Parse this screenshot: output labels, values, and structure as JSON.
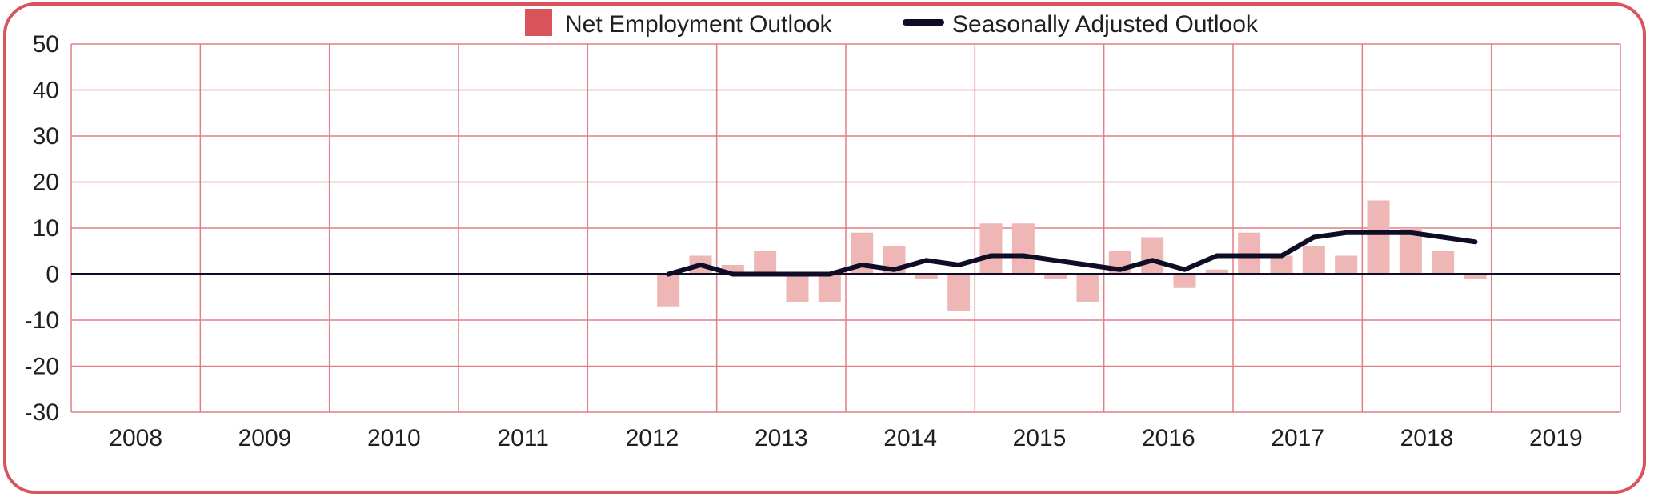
{
  "colors": {
    "frame": "#d9535c",
    "grid": "#e07f86",
    "bar": "#eeb6b4",
    "legend_bar": "#d9535c",
    "line": "#0f0c25",
    "zero_line": "#0f0c25"
  },
  "legend": {
    "bar_label": "Net Employment Outlook",
    "line_label": "Seasonally Adjusted Outlook"
  },
  "chart_data": {
    "type": "bar",
    "legend_position": "top-center",
    "grid": true,
    "ylim": [
      -30,
      50
    ],
    "yticks": [
      50,
      40,
      30,
      20,
      10,
      0,
      -10,
      -20,
      -30
    ],
    "year_labels": [
      "2008",
      "2009",
      "2010",
      "2011",
      "2012",
      "2013",
      "2014",
      "2015",
      "2016",
      "2017",
      "2018",
      "2019"
    ],
    "quarters_per_year": 4,
    "first_quarter_index": 18,
    "series": [
      {
        "name": "Net Employment Outlook",
        "type": "bar",
        "values": [
          -7,
          4,
          2,
          5,
          -6,
          -6,
          9,
          6,
          -1,
          -8,
          11,
          11,
          -1,
          -6,
          5,
          8,
          -3,
          1,
          9,
          4,
          6,
          4,
          16,
          10,
          5,
          -1
        ]
      },
      {
        "name": "Seasonally Adjusted Outlook",
        "type": "line",
        "values": [
          0,
          2,
          0,
          0,
          0,
          0,
          2,
          1,
          3,
          2,
          4,
          4,
          3,
          2,
          1,
          3,
          1,
          4,
          4,
          4,
          8,
          9,
          9,
          9,
          8,
          7
        ]
      }
    ]
  }
}
